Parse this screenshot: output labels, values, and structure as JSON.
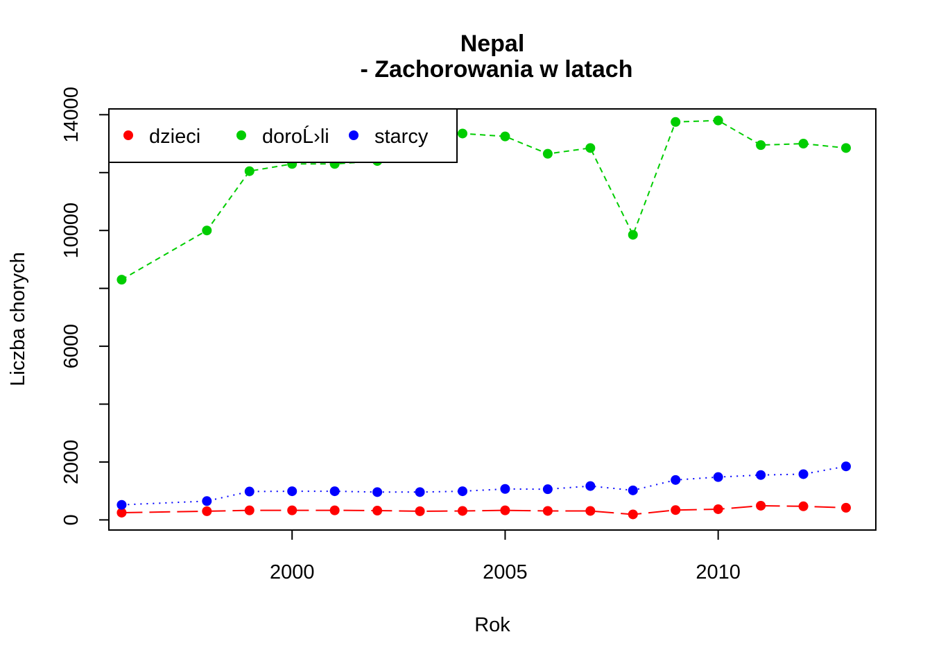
{
  "chart_data": {
    "type": "line",
    "title": "Nepal",
    "subtitle": "- Zachorowania w latach",
    "xlabel": "Rok",
    "ylabel": "Liczba chorych",
    "xlim": [
      1995.7,
      2013.7
    ],
    "ylim": [
      -350,
      14200
    ],
    "x_ticks": [
      2000,
      2005,
      2010
    ],
    "y_ticks": [
      0,
      2000,
      4000,
      6000,
      8000,
      10000,
      12000,
      14000
    ],
    "y_tick_labels": [
      "0",
      "2000",
      "",
      "6000",
      "",
      "10000",
      "",
      "14000"
    ],
    "grid": false,
    "legend_position": "top-left",
    "x": [
      1996,
      1998,
      1999,
      2000,
      2001,
      2002,
      2003,
      2004,
      2005,
      2006,
      2007,
      2008,
      2009,
      2010,
      2011,
      2012,
      2013
    ],
    "series": [
      {
        "name": "dzieci",
        "color": "#ff0000",
        "line_style": "longdash",
        "values": [
          250,
          300,
          330,
          330,
          330,
          320,
          300,
          310,
          330,
          310,
          310,
          190,
          340,
          370,
          490,
          470,
          420
        ]
      },
      {
        "name": "doroĹ›li",
        "color": "#00cd00",
        "line_style": "dashed",
        "values": [
          8300,
          10000,
          12050,
          12300,
          12300,
          12400,
          13100,
          13350,
          13250,
          12650,
          12850,
          9850,
          13750,
          13800,
          12950,
          13000,
          12850
        ]
      },
      {
        "name": "starcy",
        "color": "#0000ff",
        "line_style": "dotted",
        "values": [
          520,
          650,
          980,
          990,
          990,
          960,
          960,
          990,
          1070,
          1060,
          1170,
          1020,
          1380,
          1480,
          1550,
          1580,
          1850
        ]
      }
    ]
  }
}
